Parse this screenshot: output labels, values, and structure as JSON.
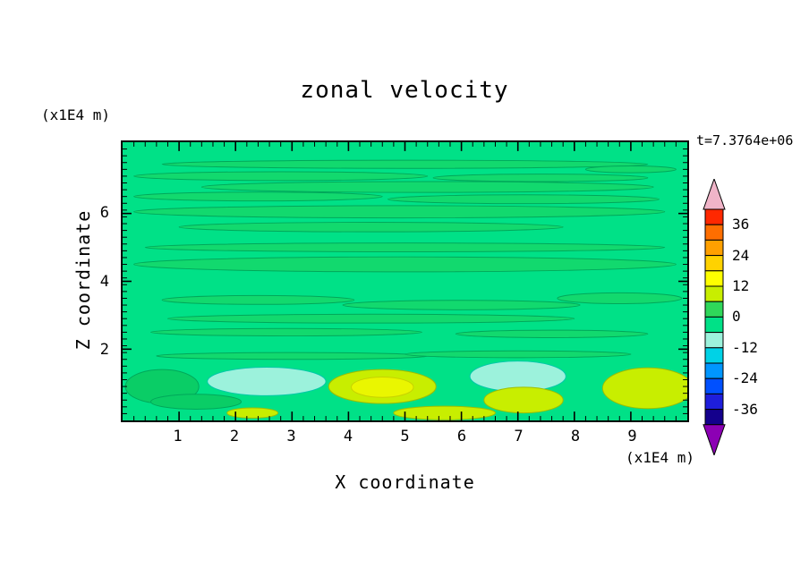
{
  "chart_data": {
    "type": "filled_contour",
    "title": "zonal velocity",
    "time_annotation": "t=7.3764e+06",
    "axes": {
      "x": {
        "label": "X coordinate",
        "unit": "(x1E4 m)",
        "major_ticks": [
          1,
          2,
          3,
          4,
          5,
          6,
          7,
          8,
          9
        ],
        "minor_step": 0.2
      },
      "y": {
        "label": "Z coordinate",
        "unit": "(x1E4 m)",
        "major_ticks": [
          2,
          4,
          6
        ],
        "minor_step": 0.2
      }
    },
    "x_range": [
      0,
      10
    ],
    "y_range": [
      -0.1,
      8.1
    ],
    "levels": {
      "contour_interval": 6,
      "labeled_interval": 12,
      "min_labeled": -36,
      "max_labeled": 36
    },
    "colorbar": {
      "labels": [
        36,
        24,
        12,
        0,
        -12,
        -24,
        -36
      ],
      "top_value": 42,
      "bottom_value": -42,
      "segment_colors_top_to_bottom": [
        "#FF2800",
        "#FF6E00",
        "#FFA000",
        "#FFD200",
        "#FFFF00",
        "#C8EE00",
        "#2FD75A",
        "#00E187",
        "#9CF2DC",
        "#00D2E6",
        "#0096FF",
        "#0050FF",
        "#1E1EDC",
        "#14008C"
      ],
      "top_arrow_color": "#F0B4C8",
      "bottom_arrow_color": "#8C00B4"
    },
    "field": {
      "base_color": "#00E187",
      "streak_color": "#12D96E",
      "contour_line_color": "#00A85A",
      "features": [
        {
          "x": 5.0,
          "y": 7.45,
          "rx": 4.3,
          "ry": 0.12
        },
        {
          "x": 9.0,
          "y": 7.3,
          "rx": 0.8,
          "ry": 0.1
        },
        {
          "x": 2.8,
          "y": 7.1,
          "rx": 2.6,
          "ry": 0.13
        },
        {
          "x": 7.4,
          "y": 7.05,
          "rx": 1.9,
          "ry": 0.11
        },
        {
          "x": 5.4,
          "y": 6.78,
          "rx": 4.0,
          "ry": 0.16
        },
        {
          "x": 2.4,
          "y": 6.5,
          "rx": 2.2,
          "ry": 0.13
        },
        {
          "x": 7.1,
          "y": 6.42,
          "rx": 2.4,
          "ry": 0.13
        },
        {
          "x": 4.9,
          "y": 6.05,
          "rx": 4.7,
          "ry": 0.18
        },
        {
          "x": 4.4,
          "y": 5.6,
          "rx": 3.4,
          "ry": 0.14
        },
        {
          "x": 5.0,
          "y": 5.0,
          "rx": 4.6,
          "ry": 0.13
        },
        {
          "x": 5.0,
          "y": 4.5,
          "rx": 4.8,
          "ry": 0.22
        },
        {
          "x": 2.4,
          "y": 3.45,
          "rx": 1.7,
          "ry": 0.13
        },
        {
          "x": 6.0,
          "y": 3.3,
          "rx": 2.1,
          "ry": 0.14
        },
        {
          "x": 8.8,
          "y": 3.5,
          "rx": 1.1,
          "ry": 0.16
        },
        {
          "x": 4.4,
          "y": 2.9,
          "rx": 3.6,
          "ry": 0.13
        },
        {
          "x": 2.9,
          "y": 2.5,
          "rx": 2.4,
          "ry": 0.11
        },
        {
          "x": 7.6,
          "y": 2.45,
          "rx": 1.7,
          "ry": 0.11
        },
        {
          "x": 3.0,
          "y": 1.8,
          "rx": 2.4,
          "ry": 0.1
        },
        {
          "x": 7.0,
          "y": 1.85,
          "rx": 2.0,
          "ry": 0.1
        },
        {
          "x": 0.7,
          "y": 0.9,
          "rx": 0.65,
          "ry": 0.5,
          "color": "#0ACD66"
        },
        {
          "x": 1.3,
          "y": 0.45,
          "rx": 0.8,
          "ry": 0.22,
          "color": "#0ACD66"
        },
        {
          "x": 2.55,
          "y": 1.05,
          "rx": 1.05,
          "ry": 0.42,
          "color": "#9CF2DC",
          "stroke": "#00C8A8"
        },
        {
          "x": 7.0,
          "y": 1.2,
          "rx": 0.85,
          "ry": 0.45,
          "color": "#9CF2DC",
          "stroke": "#00C8A8"
        },
        {
          "x": 4.6,
          "y": 0.9,
          "rx": 0.95,
          "ry": 0.5,
          "color": "#C8EE00",
          "stroke": "#A0BE00"
        },
        {
          "x": 4.6,
          "y": 0.88,
          "rx": 0.55,
          "ry": 0.3,
          "color": "#EAF600",
          "stroke": "#C8D200"
        },
        {
          "x": 7.1,
          "y": 0.5,
          "rx": 0.7,
          "ry": 0.38,
          "color": "#C8EE00",
          "stroke": "#A0BE00"
        },
        {
          "x": 9.3,
          "y": 0.85,
          "rx": 0.8,
          "ry": 0.6,
          "color": "#C8EE00",
          "stroke": "#A0BE00"
        },
        {
          "x": 5.7,
          "y": 0.12,
          "rx": 0.9,
          "ry": 0.2,
          "color": "#C8EE00",
          "stroke": "#A0BE00"
        },
        {
          "x": 2.3,
          "y": 0.12,
          "rx": 0.45,
          "ry": 0.15,
          "color": "#C8EE00",
          "stroke": "#A0BE00"
        }
      ]
    }
  }
}
